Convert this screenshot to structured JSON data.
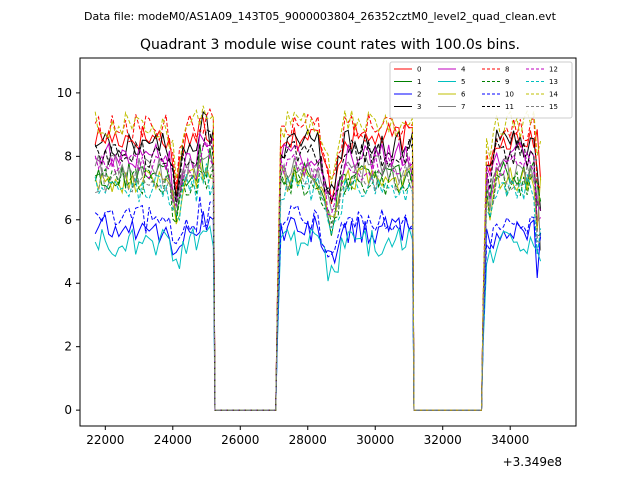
{
  "figure": {
    "sup_title": "Data file: modeM0/AS1A09_143T05_9000003804_26352cztM0_level2_quad_clean.evt",
    "offset_label": "+3.349e8"
  },
  "chart_data": {
    "type": "line",
    "title": "Quadrant 3 module wise count rates with 100.0s bins.",
    "xlabel": "",
    "ylabel": "",
    "xlim": [
      21250,
      35950
    ],
    "ylim": [
      -0.5,
      11.1
    ],
    "x_ticks": [
      22000,
      24000,
      26000,
      28000,
      30000,
      32000,
      34000
    ],
    "y_ticks": [
      0,
      2,
      4,
      6,
      8,
      10
    ],
    "x_offset": 334900000,
    "legend_position": "top-right",
    "segments": [
      {
        "start": 21700,
        "end": 25200
      },
      {
        "start": 27100,
        "end": 31100
      },
      {
        "start": 33200,
        "end": 34900
      }
    ],
    "gaps": [
      {
        "start": 25200,
        "end": 27100
      },
      {
        "start": 31100,
        "end": 33200
      }
    ],
    "series": [
      {
        "name": "0",
        "color": "#ff0000",
        "style": "solid",
        "level": 8.6
      },
      {
        "name": "1",
        "color": "#008000",
        "style": "solid",
        "level": 7.4
      },
      {
        "name": "2",
        "color": "#0000ff",
        "style": "solid",
        "level": 5.7
      },
      {
        "name": "3",
        "color": "#000000",
        "style": "solid",
        "level": 8.4
      },
      {
        "name": "4",
        "color": "#bf00bf",
        "style": "solid",
        "level": 8.0
      },
      {
        "name": "5",
        "color": "#00bfbf",
        "style": "solid",
        "level": 5.3
      },
      {
        "name": "6",
        "color": "#bfbf00",
        "style": "solid",
        "level": 7.3
      },
      {
        "name": "7",
        "color": "#808080",
        "style": "solid",
        "level": 7.6
      },
      {
        "name": "8",
        "color": "#ff0000",
        "style": "dashed",
        "level": 8.9
      },
      {
        "name": "9",
        "color": "#008000",
        "style": "dashed",
        "level": 7.2
      },
      {
        "name": "10",
        "color": "#0000ff",
        "style": "dashed",
        "level": 6.0
      },
      {
        "name": "11",
        "color": "#000000",
        "style": "dashed",
        "level": 8.1
      },
      {
        "name": "12",
        "color": "#bf00bf",
        "style": "dashed",
        "level": 7.7
      },
      {
        "name": "13",
        "color": "#00bfbf",
        "style": "dashed",
        "level": 7.0
      },
      {
        "name": "14",
        "color": "#bfbf00",
        "style": "dashed",
        "level": 9.0
      },
      {
        "name": "15",
        "color": "#808080",
        "style": "dashed",
        "level": 7.3
      }
    ]
  }
}
